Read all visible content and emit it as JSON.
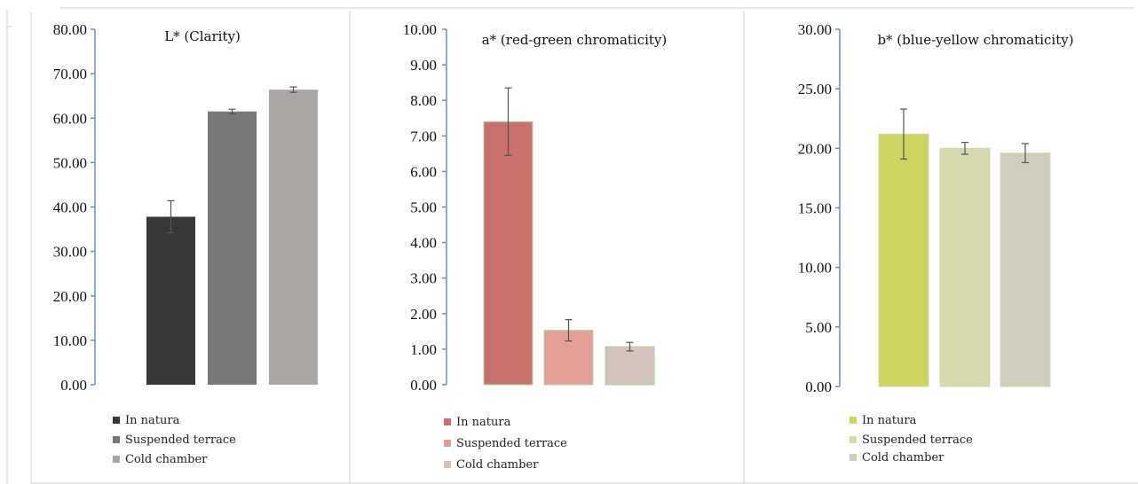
{
  "chart_data": [
    {
      "type": "bar",
      "title": "L* (Clarity)",
      "categories": [
        "In natura",
        "Suspended terrace",
        "Cold chamber"
      ],
      "values": [
        37.8,
        61.5,
        66.4
      ],
      "errors": [
        3.6,
        0.5,
        0.6
      ],
      "ylim": [
        0,
        80
      ],
      "ytick_step": 10,
      "ytick_labels": [
        "0.00",
        "10.00",
        "20.00",
        "30.00",
        "40.00",
        "50.00",
        "60.00",
        "70.00",
        "80.00"
      ],
      "colors": [
        "#383838",
        "#787878",
        "#aaa6a5"
      ],
      "legend": [
        "In natura",
        "Suspended terrace",
        "Cold chamber"
      ],
      "legend_placement": "bottom-left",
      "grid": false
    },
    {
      "type": "bar",
      "title": "a* (red-green chromaticity)",
      "categories": [
        "In natura",
        "Suspended terrace",
        "Cold chamber"
      ],
      "values": [
        7.4,
        1.53,
        1.07
      ],
      "errors": [
        0.95,
        0.3,
        0.12
      ],
      "ylim": [
        0,
        10
      ],
      "ytick_step": 1,
      "ytick_labels": [
        "0.00",
        "1.00",
        "2.00",
        "3.00",
        "4.00",
        "5.00",
        "6.00",
        "7.00",
        "8.00",
        "9.00",
        "10.00"
      ],
      "colors": [
        "#c9716c",
        "#e4a097",
        "#d4c4be"
      ],
      "legend": [
        "In natura",
        "Suspended terrace",
        "Cold chamber"
      ],
      "legend_placement": "bottom-left",
      "grid": false
    },
    {
      "type": "bar",
      "title": "b* (blue-yellow chromaticity)",
      "categories": [
        "In natura",
        "Suspended terrace",
        "Cold chamber"
      ],
      "values": [
        21.2,
        20.0,
        19.6
      ],
      "errors": [
        2.1,
        0.5,
        0.8
      ],
      "ylim": [
        0,
        30
      ],
      "ytick_step": 5,
      "ytick_labels": [
        "0.00",
        "5.00",
        "10.00",
        "15.00",
        "20.00",
        "25.00",
        "30.00"
      ],
      "colors": [
        "#cdd45f",
        "#d6d9ae",
        "#cfcdbe"
      ],
      "legend": [
        "In natura",
        "Suspended terrace",
        "Cold chamber"
      ],
      "legend_placement": "bottom-left",
      "grid": false
    }
  ],
  "colors": {
    "axis": "#6c8ebf",
    "error_bar": "#555555",
    "border": "#c8c8c8"
  }
}
